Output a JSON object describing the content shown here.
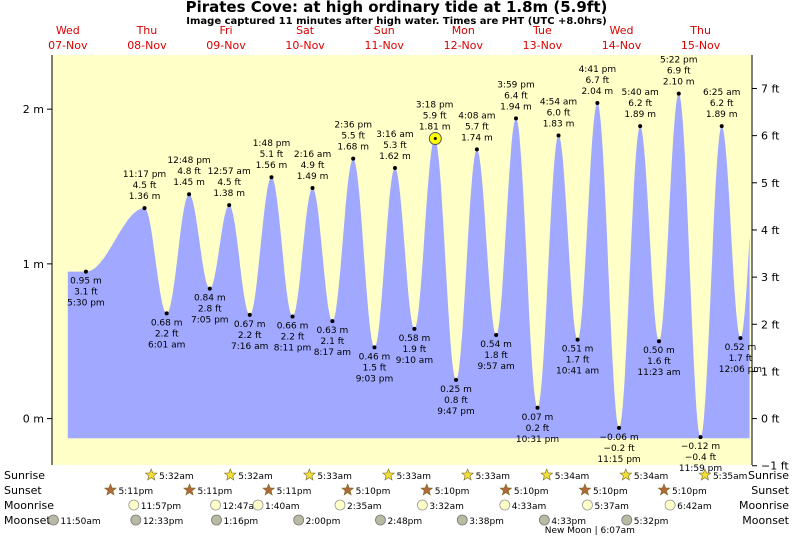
{
  "page": {
    "title": "Pirates Cove: at high  ordinary tide at 1.8m (5.9ft)",
    "subtitle": "Image captured 11 minutes after high water. Times are PHT (UTC +8.0hrs)"
  },
  "chart_data": {
    "type": "area",
    "title": "Pirates Cove: at high  ordinary tide at 1.8m (5.9ft)",
    "subtitle": "Image captured 11 minutes after high water. Times are PHT (UTC +8.0hrs)",
    "x_unit": "day of November 2018 (fractional, PHT)",
    "xlim": [
      6.8,
      15.65
    ],
    "ylim_m": [
      -0.3,
      2.35
    ],
    "ylim_ft": [
      -1,
      7.5
    ],
    "y_left_ticks": [
      {
        "v": 0,
        "label": "0 m"
      },
      {
        "v": 1,
        "label": "1 m"
      },
      {
        "v": 2,
        "label": "2 m"
      }
    ],
    "y_right_ticks": [
      {
        "v": -1,
        "label": "−1 ft"
      },
      {
        "v": 0,
        "label": "0 ft"
      },
      {
        "v": 1,
        "label": "1 ft"
      },
      {
        "v": 2,
        "label": "2 ft"
      },
      {
        "v": 3,
        "label": "3 ft"
      },
      {
        "v": 4,
        "label": "4 ft"
      },
      {
        "v": 5,
        "label": "5 ft"
      },
      {
        "v": 6,
        "label": "6 ft"
      },
      {
        "v": 7,
        "label": "7 ft"
      }
    ],
    "days": [
      {
        "weekday": "Wed",
        "date": "07-Nov",
        "x": 7
      },
      {
        "weekday": "Thu",
        "date": "08-Nov",
        "x": 8
      },
      {
        "weekday": "Fri",
        "date": "09-Nov",
        "x": 9
      },
      {
        "weekday": "Sat",
        "date": "10-Nov",
        "x": 10
      },
      {
        "weekday": "Sun",
        "date": "11-Nov",
        "x": 11
      },
      {
        "weekday": "Mon",
        "date": "12-Nov",
        "x": 12
      },
      {
        "weekday": "Tue",
        "date": "13-Nov",
        "x": 13
      },
      {
        "weekday": "Wed",
        "date": "14-Nov",
        "x": 14
      },
      {
        "weekday": "Thu",
        "date": "15-Nov",
        "x": 15
      }
    ],
    "tides": [
      {
        "x": 7.229,
        "m": 0.95,
        "ft": "3.1 ft",
        "time": "5:30 pm",
        "type": "low"
      },
      {
        "x": 7.97,
        "m": 1.36,
        "ft": "4.5 ft",
        "time": "11:17 pm",
        "type": "high"
      },
      {
        "x": 8.25,
        "m": 0.68,
        "ft": "2.2 ft",
        "time": "6:01 am",
        "type": "low"
      },
      {
        "x": 8.533,
        "m": 1.45,
        "ft": "4.8 ft",
        "time": "12:48 pm",
        "type": "high"
      },
      {
        "x": 8.795,
        "m": 0.84,
        "ft": "2.8 ft",
        "time": "7:05 pm",
        "type": "low"
      },
      {
        "x": 9.04,
        "m": 1.38,
        "ft": "4.5 ft",
        "time": "12:57 am",
        "type": "high"
      },
      {
        "x": 9.3,
        "m": 0.67,
        "ft": "2.2 ft",
        "time": "7:16 am",
        "type": "low"
      },
      {
        "x": 9.575,
        "m": 1.56,
        "ft": "5.1 ft",
        "time": "1:48 pm",
        "type": "high"
      },
      {
        "x": 9.841,
        "m": 0.66,
        "ft": "2.2 ft",
        "time": "8:11 pm",
        "type": "low"
      },
      {
        "x": 10.094,
        "m": 1.49,
        "ft": "4.9 ft",
        "time": "2:16 am",
        "type": "high"
      },
      {
        "x": 10.345,
        "m": 0.63,
        "ft": "2.1 ft",
        "time": "8:17 am",
        "type": "low"
      },
      {
        "x": 10.608,
        "m": 1.68,
        "ft": "5.5 ft",
        "time": "2:36 pm",
        "type": "high"
      },
      {
        "x": 10.877,
        "m": 0.46,
        "ft": "1.5 ft",
        "time": "9:03 pm",
        "type": "low"
      },
      {
        "x": 11.136,
        "m": 1.62,
        "ft": "5.3 ft",
        "time": "3:16 am",
        "type": "high"
      },
      {
        "x": 11.382,
        "m": 0.58,
        "ft": "1.9 ft",
        "time": "9:10 am",
        "type": "low"
      },
      {
        "x": 11.638,
        "m": 1.81,
        "ft": "5.9 ft",
        "time": "3:18 pm",
        "type": "high"
      },
      {
        "x": 11.908,
        "m": 0.25,
        "ft": "0.8 ft",
        "time": "9:47 pm",
        "type": "low"
      },
      {
        "x": 12.172,
        "m": 1.74,
        "ft": "5.7 ft",
        "time": "4:08 am",
        "type": "high"
      },
      {
        "x": 12.415,
        "m": 0.54,
        "ft": "1.8 ft",
        "time": "9:57 am",
        "type": "low"
      },
      {
        "x": 12.666,
        "m": 1.94,
        "ft": "6.4 ft",
        "time": "3:59 pm",
        "type": "high"
      },
      {
        "x": 12.938,
        "m": 0.07,
        "ft": "0.2 ft",
        "time": "10:31 pm",
        "type": "low"
      },
      {
        "x": 13.204,
        "m": 1.83,
        "ft": "6.0 ft",
        "time": "4:54 am",
        "type": "high"
      },
      {
        "x": 13.445,
        "m": 0.51,
        "ft": "1.7 ft",
        "time": "10:41 am",
        "type": "low"
      },
      {
        "x": 13.695,
        "m": 2.04,
        "ft": "6.7 ft",
        "time": "4:41 pm",
        "type": "high"
      },
      {
        "x": 13.969,
        "m": -0.06,
        "ft": "−0.2 ft",
        "time": "11:15 pm",
        "type": "low"
      },
      {
        "x": 14.236,
        "m": 1.89,
        "ft": "6.2 ft",
        "time": "5:40 am",
        "type": "high"
      },
      {
        "x": 14.474,
        "m": 0.5,
        "ft": "1.6 ft",
        "time": "11:23 am",
        "type": "low"
      },
      {
        "x": 14.724,
        "m": 2.1,
        "ft": "6.9 ft",
        "time": "5:22 pm",
        "type": "high"
      },
      {
        "x": 14.999,
        "m": -0.12,
        "ft": "−0.4 ft",
        "time": "11:59 pm",
        "type": "low"
      },
      {
        "x": 15.267,
        "m": 1.89,
        "ft": "6.2 ft",
        "time": "6:25 am",
        "type": "high"
      },
      {
        "x": 15.504,
        "m": 0.52,
        "ft": "1.7 ft",
        "time": "12:06 pm",
        "type": "low"
      }
    ],
    "curve_x_range": [
      7.0,
      15.62
    ],
    "daylight": [
      {
        "sunrise": 6.899,
        "sunset": 7.216
      },
      {
        "sunrise": 7.899,
        "sunset": 8.216
      },
      {
        "sunrise": 8.899,
        "sunset": 9.216
      },
      {
        "sunrise": 9.898,
        "sunset": 10.215
      },
      {
        "sunrise": 10.898,
        "sunset": 11.215
      },
      {
        "sunrise": 11.898,
        "sunset": 12.215
      },
      {
        "sunrise": 12.899,
        "sunset": 13.215
      },
      {
        "sunrise": 13.899,
        "sunset": 14.215
      },
      {
        "sunrise": 14.899,
        "sunset": 15.215
      },
      {
        "sunrise": 15.899,
        "sunset": 16.215
      }
    ],
    "current_marker": {
      "x": 11.646,
      "m": 1.81
    },
    "colors": {
      "night": "#8c8c8c",
      "day": "#ffffc8",
      "tide": "#a0a8ff",
      "date": "#dd0000",
      "marker": "#ffff00"
    },
    "astro": {
      "rows": [
        "Sunrise",
        "Sunset",
        "Moonrise",
        "Moonset"
      ],
      "sunrise": [
        {
          "x": 8.231,
          "t": "5:32am"
        },
        {
          "x": 9.231,
          "t": "5:32am"
        },
        {
          "x": 10.231,
          "t": "5:33am"
        },
        {
          "x": 11.231,
          "t": "5:33am"
        },
        {
          "x": 12.231,
          "t": "5:33am"
        },
        {
          "x": 13.232,
          "t": "5:34am"
        },
        {
          "x": 14.232,
          "t": "5:34am"
        },
        {
          "x": 15.232,
          "t": "5:35am"
        }
      ],
      "sunset": [
        {
          "x": 7.716,
          "t": "5:11pm"
        },
        {
          "x": 8.716,
          "t": "5:11pm"
        },
        {
          "x": 9.716,
          "t": "5:11pm"
        },
        {
          "x": 10.715,
          "t": "5:10pm"
        },
        {
          "x": 11.715,
          "t": "5:10pm"
        },
        {
          "x": 12.715,
          "t": "5:10pm"
        },
        {
          "x": 13.715,
          "t": "5:10pm"
        },
        {
          "x": 14.715,
          "t": "5:10pm"
        }
      ],
      "moonrise": [
        {
          "x": 7.998,
          "t": "11:57pm"
        },
        {
          "x": 9.032,
          "t": "12:47am"
        },
        {
          "x": 9.569,
          "t": "1:40am"
        },
        {
          "x": 10.606,
          "t": "2:35am"
        },
        {
          "x": 11.647,
          "t": "3:32am"
        },
        {
          "x": 12.689,
          "t": "4:33am"
        },
        {
          "x": 13.734,
          "t": "5:37am"
        },
        {
          "x": 14.779,
          "t": "6:42am"
        }
      ],
      "moonset": [
        {
          "x": 6.982,
          "t": "11:50am"
        },
        {
          "x": 8.024,
          "t": "12:33pm"
        },
        {
          "x": 9.044,
          "t": "1:16pm"
        },
        {
          "x": 10.083,
          "t": "2:00pm"
        },
        {
          "x": 11.117,
          "t": "2:48pm"
        },
        {
          "x": 12.151,
          "t": "3:38pm"
        },
        {
          "x": 13.189,
          "t": "4:33pm"
        },
        {
          "x": 14.231,
          "t": "5:32pm"
        }
      ],
      "new_moon": {
        "x": 13.6,
        "label": "New Moon | 6:07am"
      }
    }
  }
}
